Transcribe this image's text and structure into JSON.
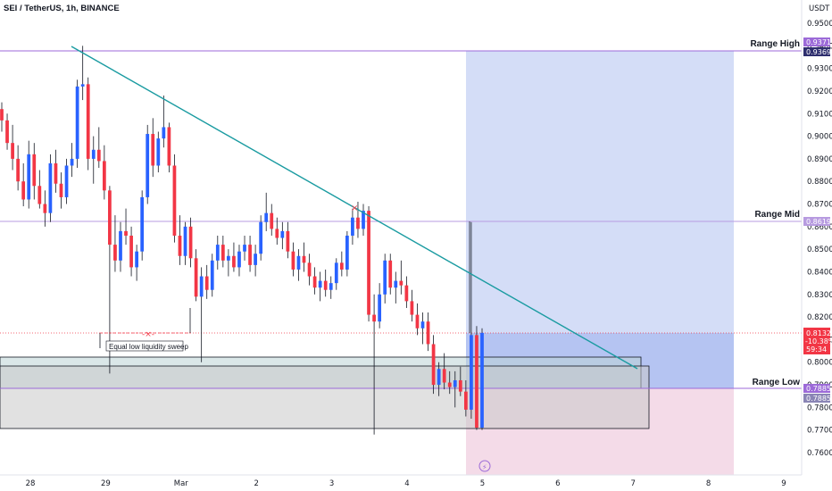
{
  "header": {
    "symbol_title": "SEI / TetherUS, 1h, BINANCE",
    "currency": "USDT"
  },
  "chart_data": {
    "type": "candlestick",
    "ylim": [
      0.755,
      0.955
    ],
    "y_ticks": [
      "0.9500",
      "0.9400",
      "0.9300",
      "0.9200",
      "0.9100",
      "0.9000",
      "0.8900",
      "0.8800",
      "0.8700",
      "0.8600",
      "0.8500",
      "0.8400",
      "0.8300",
      "0.8200",
      "0.8100",
      "0.8000",
      "0.7900",
      "0.7800",
      "0.7700",
      "0.7600"
    ],
    "x_ticks": [
      "28",
      "29",
      "Mar",
      "2",
      "3",
      "4",
      "5",
      "6",
      "7",
      "8",
      "9"
    ],
    "levels": [
      {
        "name": "Range High",
        "price": 0.9371,
        "tag": "0.9371",
        "tag2": "0.9369",
        "color": "#9c6ad8"
      },
      {
        "name": "Range Mid",
        "price": 0.8619,
        "tag": "0.8619",
        "color": "#b79be0"
      },
      {
        "name": "Range Low",
        "price": 0.7885,
        "tag": "0.7885",
        "tag2": "0.7885",
        "color": "#9c6ad8"
      }
    ],
    "current_price": {
      "price": "0.8132",
      "change": "-10.38%",
      "countdown": "59:34",
      "color": "#f23645"
    },
    "annotation": "Equal low liquidity sweep",
    "candles": [
      [
        0.912,
        0.915,
        0.902,
        0.907
      ],
      [
        0.907,
        0.91,
        0.894,
        0.897
      ],
      [
        0.897,
        0.905,
        0.885,
        0.89
      ],
      [
        0.89,
        0.896,
        0.876,
        0.88
      ],
      [
        0.88,
        0.888,
        0.869,
        0.872
      ],
      [
        0.872,
        0.898,
        0.868,
        0.892
      ],
      [
        0.892,
        0.897,
        0.872,
        0.878
      ],
      [
        0.878,
        0.885,
        0.868,
        0.87
      ],
      [
        0.87,
        0.876,
        0.86,
        0.866
      ],
      [
        0.866,
        0.892,
        0.862,
        0.888
      ],
      [
        0.888,
        0.894,
        0.875,
        0.879
      ],
      [
        0.879,
        0.884,
        0.868,
        0.873
      ],
      [
        0.873,
        0.89,
        0.87,
        0.887
      ],
      [
        0.887,
        0.897,
        0.882,
        0.89
      ],
      [
        0.89,
        0.925,
        0.886,
        0.922
      ],
      [
        0.922,
        0.94,
        0.916,
        0.923
      ],
      [
        0.923,
        0.926,
        0.885,
        0.89
      ],
      [
        0.89,
        0.9,
        0.879,
        0.894
      ],
      [
        0.894,
        0.904,
        0.886,
        0.889
      ],
      [
        0.889,
        0.896,
        0.872,
        0.876
      ],
      [
        0.876,
        0.878,
        0.795,
        0.852
      ],
      [
        0.852,
        0.865,
        0.84,
        0.845
      ],
      [
        0.845,
        0.862,
        0.84,
        0.858
      ],
      [
        0.858,
        0.868,
        0.852,
        0.856
      ],
      [
        0.856,
        0.86,
        0.838,
        0.842
      ],
      [
        0.842,
        0.852,
        0.836,
        0.849
      ],
      [
        0.849,
        0.876,
        0.845,
        0.873
      ],
      [
        0.873,
        0.905,
        0.87,
        0.901
      ],
      [
        0.901,
        0.908,
        0.882,
        0.887
      ],
      [
        0.887,
        0.902,
        0.884,
        0.899
      ],
      [
        0.899,
        0.918,
        0.895,
        0.904
      ],
      [
        0.904,
        0.906,
        0.884,
        0.887
      ],
      [
        0.887,
        0.892,
        0.853,
        0.856
      ],
      [
        0.856,
        0.865,
        0.843,
        0.847
      ],
      [
        0.847,
        0.862,
        0.843,
        0.86
      ],
      [
        0.86,
        0.864,
        0.842,
        0.846
      ],
      [
        0.846,
        0.85,
        0.827,
        0.829
      ],
      [
        0.829,
        0.842,
        0.8,
        0.838
      ],
      [
        0.838,
        0.843,
        0.828,
        0.832
      ],
      [
        0.832,
        0.848,
        0.829,
        0.845
      ],
      [
        0.845,
        0.856,
        0.841,
        0.852
      ],
      [
        0.852,
        0.856,
        0.842,
        0.845
      ],
      [
        0.845,
        0.85,
        0.838,
        0.847
      ],
      [
        0.847,
        0.853,
        0.84,
        0.842
      ],
      [
        0.842,
        0.852,
        0.838,
        0.849
      ],
      [
        0.849,
        0.856,
        0.845,
        0.852
      ],
      [
        0.852,
        0.856,
        0.84,
        0.843
      ],
      [
        0.843,
        0.852,
        0.838,
        0.848
      ],
      [
        0.848,
        0.865,
        0.845,
        0.862
      ],
      [
        0.862,
        0.875,
        0.858,
        0.866
      ],
      [
        0.866,
        0.87,
        0.856,
        0.859
      ],
      [
        0.859,
        0.864,
        0.852,
        0.855
      ],
      [
        0.855,
        0.862,
        0.85,
        0.858
      ],
      [
        0.858,
        0.862,
        0.846,
        0.849
      ],
      [
        0.849,
        0.853,
        0.838,
        0.841
      ],
      [
        0.841,
        0.85,
        0.836,
        0.847
      ],
      [
        0.847,
        0.853,
        0.84,
        0.844
      ],
      [
        0.844,
        0.848,
        0.834,
        0.838
      ],
      [
        0.838,
        0.842,
        0.83,
        0.833
      ],
      [
        0.833,
        0.84,
        0.827,
        0.836
      ],
      [
        0.836,
        0.841,
        0.829,
        0.832
      ],
      [
        0.832,
        0.838,
        0.828,
        0.835
      ],
      [
        0.835,
        0.846,
        0.832,
        0.844
      ],
      [
        0.844,
        0.849,
        0.838,
        0.841
      ],
      [
        0.841,
        0.858,
        0.838,
        0.856
      ],
      [
        0.856,
        0.868,
        0.852,
        0.864
      ],
      [
        0.864,
        0.871,
        0.855,
        0.859
      ],
      [
        0.859,
        0.87,
        0.856,
        0.867
      ],
      [
        0.867,
        0.869,
        0.818,
        0.821
      ],
      [
        0.821,
        0.83,
        0.768,
        0.818
      ],
      [
        0.818,
        0.835,
        0.815,
        0.83
      ],
      [
        0.83,
        0.848,
        0.826,
        0.845
      ],
      [
        0.845,
        0.848,
        0.83,
        0.833
      ],
      [
        0.833,
        0.84,
        0.826,
        0.836
      ],
      [
        0.836,
        0.845,
        0.83,
        0.834
      ],
      [
        0.834,
        0.838,
        0.824,
        0.827
      ],
      [
        0.827,
        0.832,
        0.818,
        0.821
      ],
      [
        0.821,
        0.826,
        0.812,
        0.815
      ],
      [
        0.815,
        0.822,
        0.808,
        0.818
      ],
      [
        0.818,
        0.822,
        0.805,
        0.808
      ],
      [
        0.808,
        0.812,
        0.786,
        0.79
      ],
      [
        0.79,
        0.8,
        0.785,
        0.797
      ],
      [
        0.797,
        0.804,
        0.788,
        0.791
      ],
      [
        0.791,
        0.796,
        0.786,
        0.789
      ],
      [
        0.789,
        0.796,
        0.78,
        0.792
      ],
      [
        0.792,
        0.798,
        0.785,
        0.787
      ],
      [
        0.787,
        0.792,
        0.776,
        0.779
      ],
      [
        0.779,
        0.862,
        0.775,
        0.812
      ],
      [
        0.812,
        0.816,
        0.77,
        0.771
      ],
      [
        0.771,
        0.815,
        0.77,
        0.813
      ]
    ]
  }
}
